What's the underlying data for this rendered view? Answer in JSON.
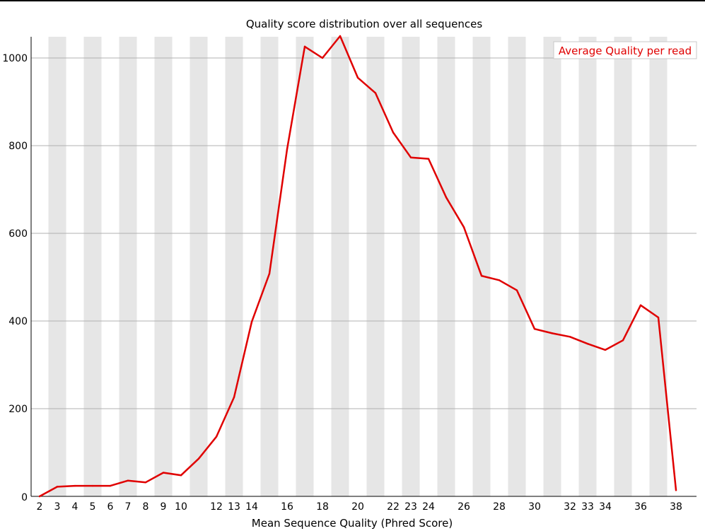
{
  "colors": {
    "background": "#ffffff",
    "stripe": "#e6e6e6",
    "gridline": "#b0b0b0",
    "axis": "#000000",
    "line": "#e00000",
    "legend_border": "#c8c8c8",
    "legend_text": "#e00000"
  },
  "chart_data": {
    "type": "line",
    "title": "Quality score distribution over all sequences",
    "xlabel": "Mean Sequence Quality (Phred Score)",
    "ylabel": "",
    "xlim": [
      2,
      38
    ],
    "ylim": [
      0,
      1050
    ],
    "grid": true,
    "stripes": "alternating vertical bands",
    "legend_position": "top-right",
    "x_tick_labels": [
      "2",
      "3",
      "4",
      "5",
      "6",
      "7",
      "8",
      "9",
      "10",
      "12",
      "13",
      "14",
      "16",
      "18",
      "20",
      "22",
      "23",
      "24",
      "26",
      "28",
      "30",
      "32",
      "33",
      "34",
      "36",
      "38"
    ],
    "y_tick_labels": [
      "0",
      "200",
      "400",
      "600",
      "800",
      "1000"
    ],
    "y_ticks": [
      0,
      200,
      400,
      600,
      800,
      1000
    ],
    "series": [
      {
        "name": "Average Quality per read",
        "x": [
          2,
          3,
          4,
          5,
          6,
          7,
          8,
          9,
          10,
          11,
          12,
          13,
          14,
          15,
          16,
          17,
          18,
          19,
          20,
          21,
          22,
          23,
          24,
          25,
          26,
          27,
          28,
          29,
          30,
          31,
          32,
          33,
          34,
          35,
          36,
          37,
          38
        ],
        "values": [
          0,
          22,
          24,
          24,
          24,
          36,
          32,
          54,
          48,
          86,
          136,
          226,
          398,
          508,
          792,
          1026,
          1000,
          1050,
          955,
          920,
          830,
          773,
          770,
          682,
          614,
          503,
          493,
          470,
          382,
          372,
          364,
          348,
          334,
          356,
          436,
          408,
          14
        ]
      }
    ]
  }
}
